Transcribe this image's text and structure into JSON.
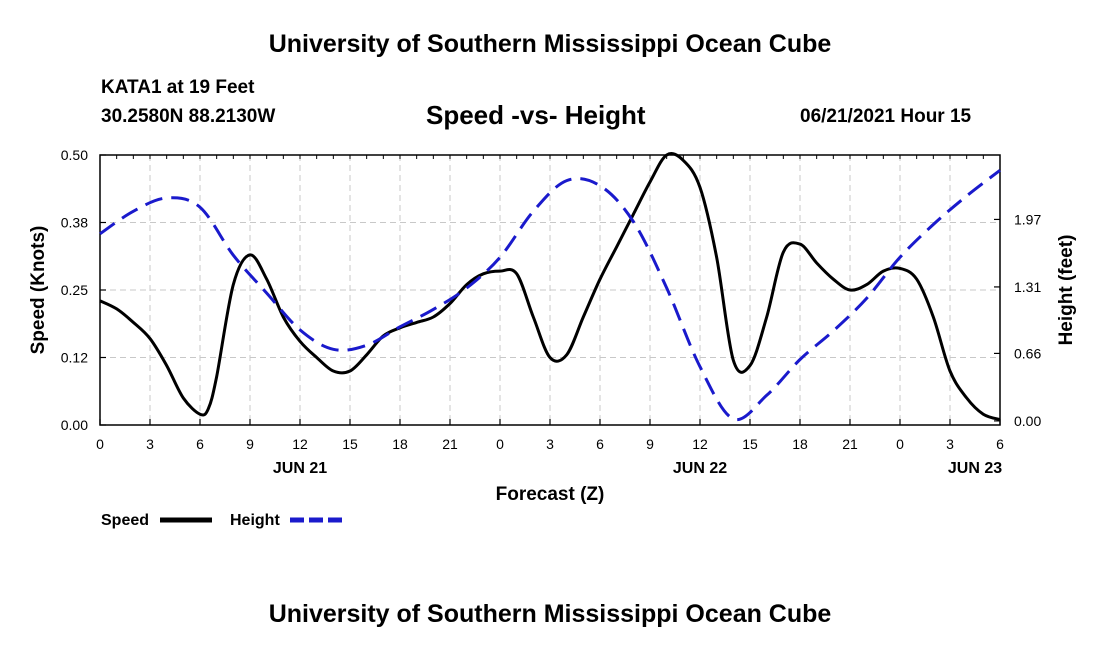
{
  "header": {
    "title_top": "University of Southern Mississippi Ocean Cube",
    "station_name": "KATA1 at 19 Feet",
    "station_coords": "30.2580N  88.2130W",
    "chart_title": "Speed -vs- Height",
    "datetime": "06/21/2021 Hour 15"
  },
  "footer": {
    "title_bottom": "University of Southern Mississippi Ocean Cube"
  },
  "chart_data": {
    "type": "line",
    "title": "Speed -vs- Height",
    "xlabel": "Forecast (Z)",
    "ylabel": "Speed (Knots)",
    "y2label": "Height (feet)",
    "xlim": [
      0,
      54
    ],
    "ylim": [
      0,
      0.5
    ],
    "y2lim": [
      -0.04,
      2.6
    ],
    "x_ticks": [
      0,
      3,
      6,
      9,
      12,
      15,
      18,
      21,
      24,
      27,
      30,
      33,
      36,
      39,
      42,
      45,
      48,
      51,
      54
    ],
    "x_tick_labels": [
      "0",
      "3",
      "6",
      "9",
      "12",
      "15",
      "18",
      "21",
      "0",
      "3",
      "6",
      "9",
      "12",
      "15",
      "18",
      "21",
      "0",
      "3",
      "6"
    ],
    "date_labels": [
      {
        "x": 12,
        "label": "JUN 21"
      },
      {
        "x": 36,
        "label": "JUN 22"
      },
      {
        "x": 52.5,
        "label": "JUN 23"
      }
    ],
    "y_ticks": [
      0.0,
      0.125,
      0.25,
      0.375,
      0.5
    ],
    "y_tick_labels": [
      "0.00",
      "0.12",
      "0.25",
      "0.38",
      "0.50"
    ],
    "y2_ticks": [
      0.0,
      0.66,
      1.31,
      1.97
    ],
    "y2_tick_labels": [
      "0.00",
      "0.66",
      "1.31",
      "1.97"
    ],
    "grid": true,
    "legend": "bottom-left",
    "series": [
      {
        "name": "Speed",
        "axis": "left",
        "color": "#000000",
        "dash": "solid",
        "x": [
          0,
          1,
          2,
          3,
          4,
          5,
          6,
          6.5,
          7,
          8,
          9,
          10,
          11,
          12,
          13,
          14,
          15,
          16,
          17,
          18,
          19,
          20,
          21,
          22,
          23,
          24,
          25,
          26,
          27,
          28,
          29,
          30,
          31,
          32,
          33,
          34,
          35,
          36,
          37,
          38,
          39,
          40,
          41,
          42,
          43,
          44,
          45,
          46,
          47,
          48,
          49,
          50,
          51,
          52,
          53,
          54
        ],
        "y": [
          0.23,
          0.215,
          0.19,
          0.16,
          0.11,
          0.05,
          0.02,
          0.03,
          0.09,
          0.26,
          0.315,
          0.27,
          0.2,
          0.155,
          0.125,
          0.1,
          0.1,
          0.13,
          0.165,
          0.18,
          0.19,
          0.2,
          0.225,
          0.26,
          0.28,
          0.285,
          0.28,
          0.2,
          0.125,
          0.13,
          0.2,
          0.27,
          0.33,
          0.39,
          0.45,
          0.5,
          0.49,
          0.44,
          0.31,
          0.12,
          0.11,
          0.2,
          0.32,
          0.335,
          0.3,
          0.27,
          0.25,
          0.26,
          0.285,
          0.29,
          0.27,
          0.2,
          0.1,
          0.05,
          0.02,
          0.01
        ]
      },
      {
        "name": "Height",
        "axis": "right",
        "color": "#1a1acc",
        "dash": "dashed",
        "x": [
          0,
          2,
          4,
          6,
          8,
          10,
          12,
          14,
          16,
          18,
          20,
          22,
          24,
          26,
          28,
          30,
          32,
          34,
          36,
          38,
          40,
          42,
          44,
          46,
          48,
          50,
          52,
          54
        ],
        "y": [
          1.83,
          2.05,
          2.18,
          2.09,
          1.62,
          1.25,
          0.89,
          0.7,
          0.74,
          0.92,
          1.09,
          1.3,
          1.6,
          2.05,
          2.35,
          2.3,
          1.95,
          1.3,
          0.53,
          0.02,
          0.25,
          0.6,
          0.88,
          1.2,
          1.6,
          1.92,
          2.2,
          2.45
        ]
      }
    ]
  }
}
